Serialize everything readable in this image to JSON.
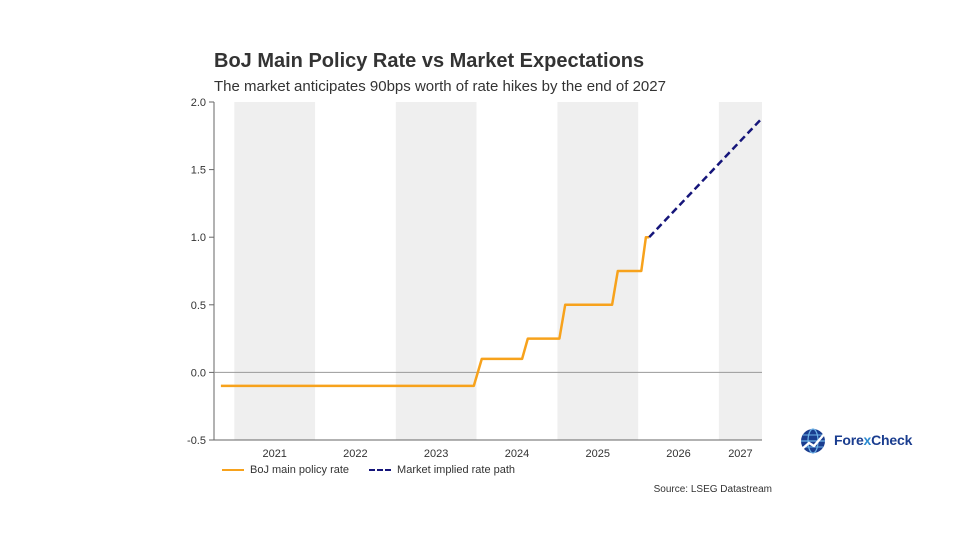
{
  "header": {
    "title": "BoJ Main Policy Rate vs Market Expectations",
    "subtitle": "The market anticipates 90bps worth of rate hikes by the end of 2027"
  },
  "legend": {
    "policy_label": "BoJ main policy rate",
    "market_label": "Market implied rate path"
  },
  "source": "Source: LSEG Datastream",
  "logo": {
    "prefix": "Fore",
    "x": "x",
    "suffix": "Check",
    "icon": "globe-chart-icon"
  },
  "colors": {
    "policy_line": "#f7a21c",
    "market_line": "#15157a",
    "band": "#efefef",
    "zero_line": "#9a9a9a"
  },
  "chart_data": {
    "type": "line",
    "title": "BoJ Main Policy Rate vs Market Expectations",
    "subtitle": "The market anticipates 90bps worth of rate hikes by the end of 2027",
    "xlabel": "",
    "ylabel": "",
    "xlim": [
      "2020-10-01",
      "2027-07-15"
    ],
    "ylim": [
      -0.5,
      2.0
    ],
    "yticks": [
      -0.5,
      0.0,
      0.5,
      1.0,
      1.5,
      2.0
    ],
    "ytick_labels": [
      "-0.5",
      "0.0",
      "0.5",
      "1.0",
      "1.5",
      "2.0"
    ],
    "year_labels": [
      "2021",
      "2022",
      "2023",
      "2024",
      "2025",
      "2026",
      "2027"
    ],
    "shaded_years": [
      "2021",
      "2023",
      "2025",
      "2027"
    ],
    "grid": false,
    "legend_position": "bottom-left",
    "series": [
      {
        "name": "BoJ main policy rate",
        "style": "solid",
        "x": [
          "2020-11-01",
          "2023-12-20",
          "2024-01-25",
          "2024-01-25",
          "2024-07-25",
          "2024-08-20",
          "2024-08-20",
          "2025-01-10",
          "2025-02-05",
          "2025-02-05",
          "2025-09-05",
          "2025-10-01",
          "2025-10-01",
          "2026-01-15",
          "2026-02-05",
          "2026-02-05",
          "2026-02-20"
        ],
        "values": [
          -0.1,
          -0.1,
          0.1,
          0.1,
          0.1,
          0.25,
          0.25,
          0.25,
          0.5,
          0.5,
          0.5,
          0.75,
          0.75,
          0.75,
          1.0,
          1.0,
          1.0
        ]
      },
      {
        "name": "Market implied rate path",
        "style": "dashed",
        "x": [
          "2026-02-20",
          "2027-07-15"
        ],
        "values": [
          1.0,
          1.88
        ]
      }
    ]
  }
}
